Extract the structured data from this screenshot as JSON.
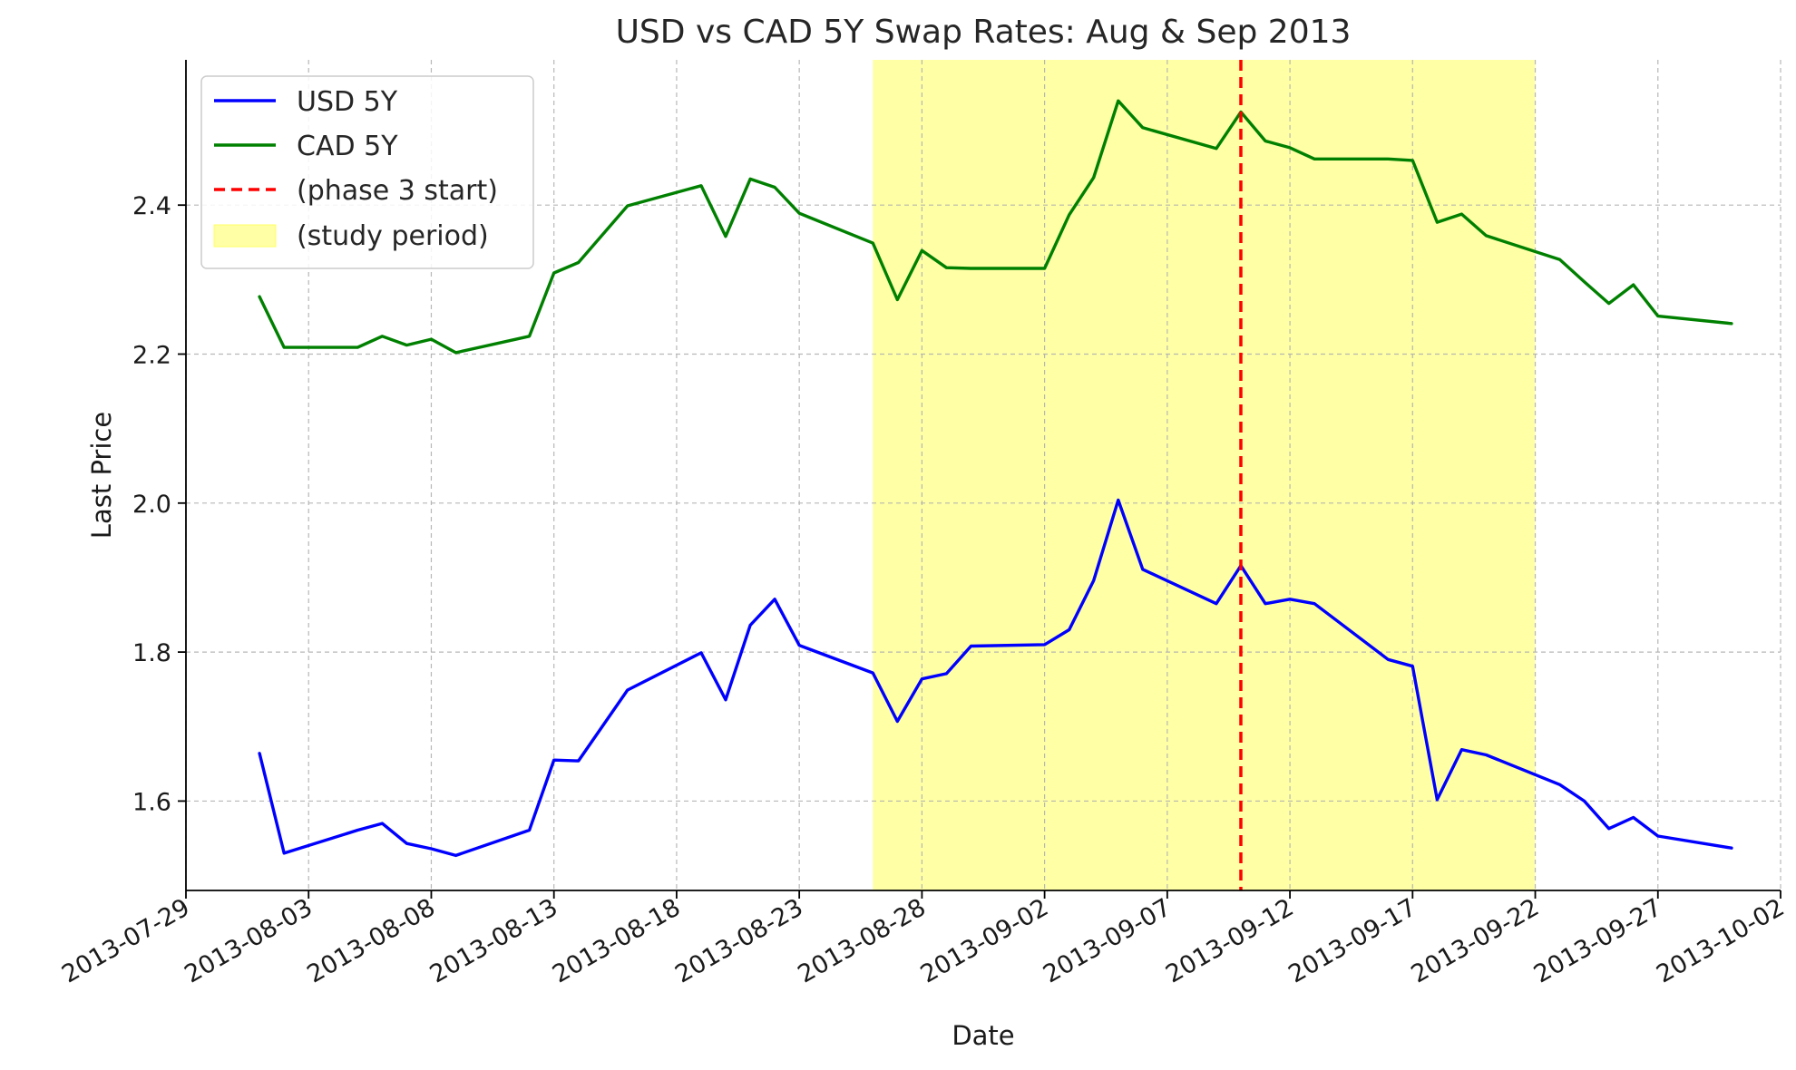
{
  "chart_data": {
    "type": "line",
    "title": "USD vs CAD 5Y Swap Rates: Aug & Sep 2013",
    "xlabel": "Date",
    "ylabel": "Last Price",
    "xlim": [
      "2013-07-29",
      "2013-10-02"
    ],
    "ylim": [
      1.48,
      2.595
    ],
    "x_ticks": [
      "2013-07-29",
      "2013-08-03",
      "2013-08-08",
      "2013-08-13",
      "2013-08-18",
      "2013-08-23",
      "2013-08-28",
      "2013-09-02",
      "2013-09-07",
      "2013-09-12",
      "2013-09-17",
      "2013-09-22",
      "2013-09-27",
      "2013-10-02"
    ],
    "y_ticks": [
      1.6,
      1.8,
      2.0,
      2.2,
      2.4
    ],
    "y_tick_labels": [
      "1.6",
      "1.8",
      "2.0",
      "2.2",
      "2.4"
    ],
    "grid": true,
    "legend_position": "top-left",
    "x": [
      "2013-08-01",
      "2013-08-02",
      "2013-08-05",
      "2013-08-06",
      "2013-08-07",
      "2013-08-08",
      "2013-08-09",
      "2013-08-12",
      "2013-08-13",
      "2013-08-14",
      "2013-08-16",
      "2013-08-19",
      "2013-08-20",
      "2013-08-21",
      "2013-08-22",
      "2013-08-23",
      "2013-08-26",
      "2013-08-27",
      "2013-08-28",
      "2013-08-29",
      "2013-08-30",
      "2013-09-02",
      "2013-09-03",
      "2013-09-04",
      "2013-09-05",
      "2013-09-06",
      "2013-09-09",
      "2013-09-10",
      "2013-09-11",
      "2013-09-12",
      "2013-09-13",
      "2013-09-16",
      "2013-09-17",
      "2013-09-18",
      "2013-09-19",
      "2013-09-20",
      "2013-09-23",
      "2013-09-24",
      "2013-09-25",
      "2013-09-26",
      "2013-09-27",
      "2013-09-30"
    ],
    "series": [
      {
        "name": "USD 5Y",
        "color": "#0000ff",
        "values": [
          1.664,
          1.53,
          1.561,
          1.57,
          1.543,
          1.536,
          1.527,
          1.561,
          1.655,
          1.654,
          1.749,
          1.799,
          1.736,
          1.836,
          1.871,
          1.809,
          1.772,
          1.707,
          1.764,
          1.771,
          1.808,
          1.81,
          1.83,
          1.896,
          2.004,
          1.911,
          1.865,
          1.916,
          1.865,
          1.871,
          1.865,
          1.79,
          1.781,
          1.602,
          1.669,
          1.662,
          1.622,
          1.6,
          1.563,
          1.578,
          1.553,
          1.537
        ]
      },
      {
        "name": "CAD 5Y",
        "color": "#008000",
        "values": [
          2.277,
          2.209,
          2.209,
          2.224,
          2.212,
          2.22,
          2.202,
          2.224,
          2.309,
          2.323,
          2.399,
          2.426,
          2.358,
          2.435,
          2.424,
          2.389,
          2.349,
          2.273,
          2.339,
          2.316,
          2.315,
          2.315,
          2.387,
          2.437,
          2.54,
          2.504,
          2.476,
          2.525,
          2.486,
          2.477,
          2.462,
          2.462,
          2.46,
          2.377,
          2.388,
          2.359,
          2.327,
          2.297,
          2.268,
          2.293,
          2.251,
          2.241
        ]
      }
    ],
    "markers": [
      {
        "type": "vline",
        "x": "2013-09-10",
        "label": "(phase 3 start)",
        "color": "#ff0000",
        "style": "dashed"
      },
      {
        "type": "span",
        "x_start": "2013-08-26",
        "x_end": "2013-09-22",
        "label": "(study period)",
        "color": "#ffffa6"
      }
    ]
  }
}
